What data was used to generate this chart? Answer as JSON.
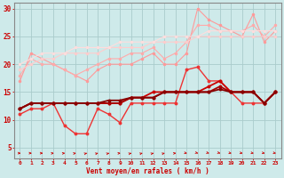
{
  "x": [
    0,
    1,
    2,
    3,
    4,
    5,
    6,
    7,
    8,
    9,
    10,
    11,
    12,
    13,
    14,
    15,
    16,
    17,
    18,
    19,
    20,
    21,
    22,
    23
  ],
  "series": [
    {
      "color": "#ff9999",
      "lw": 0.8,
      "marker": "o",
      "ms": 1.5,
      "values": [
        17,
        22,
        21,
        20,
        19,
        18,
        17,
        19,
        20,
        20,
        20,
        21,
        22,
        20,
        20,
        22,
        30,
        28,
        27,
        26,
        25,
        29,
        24,
        26
      ]
    },
    {
      "color": "#ffaaaa",
      "lw": 0.8,
      "marker": "o",
      "ms": 1.5,
      "values": [
        18,
        21,
        20,
        20,
        19,
        18,
        19,
        20,
        21,
        21,
        22,
        22,
        23,
        21,
        22,
        24,
        27,
        27,
        26,
        26,
        26,
        27,
        25,
        27
      ]
    },
    {
      "color": "#ffcccc",
      "lw": 0.8,
      "marker": "o",
      "ms": 1.5,
      "values": [
        19,
        20,
        21,
        21,
        22,
        22,
        22,
        22,
        23,
        23,
        23,
        23,
        24,
        24,
        24,
        24,
        25,
        25,
        25,
        25,
        25,
        25,
        25,
        25
      ]
    },
    {
      "color": "#ffdddd",
      "lw": 0.8,
      "marker": "o",
      "ms": 1.5,
      "values": [
        20,
        21,
        22,
        22,
        22,
        23,
        23,
        23,
        23,
        24,
        24,
        24,
        24,
        25,
        25,
        25,
        25,
        26,
        26,
        26,
        26,
        26,
        26,
        26
      ]
    },
    {
      "color": "#ee3333",
      "lw": 1.0,
      "marker": "o",
      "ms": 1.8,
      "values": [
        11,
        12,
        12,
        13,
        9,
        7.5,
        7.5,
        12,
        11,
        9.5,
        13,
        13,
        13,
        13,
        13,
        19,
        19.5,
        17,
        17,
        15,
        13,
        13,
        13,
        15
      ]
    },
    {
      "color": "#cc0000",
      "lw": 1.3,
      "marker": "o",
      "ms": 1.8,
      "values": [
        12,
        13,
        13,
        13,
        13,
        13,
        13,
        13,
        13,
        13,
        14,
        14,
        15,
        15,
        15,
        15,
        15,
        16,
        17,
        15,
        15,
        15,
        13,
        15
      ]
    },
    {
      "color": "#aa0000",
      "lw": 1.3,
      "marker": "o",
      "ms": 1.8,
      "values": [
        12,
        13,
        13,
        13,
        13,
        13,
        13,
        13,
        13,
        13,
        14,
        14,
        14,
        15,
        15,
        15,
        15,
        15,
        16,
        15,
        15,
        15,
        13,
        15
      ]
    },
    {
      "color": "#880000",
      "lw": 1.3,
      "marker": "o",
      "ms": 1.8,
      "values": [
        12,
        13,
        13,
        13,
        13,
        13,
        13,
        13,
        13.5,
        13.5,
        14,
        14,
        14,
        15,
        15,
        15,
        15,
        15,
        15.5,
        15,
        15,
        15,
        13,
        15
      ]
    }
  ],
  "xlabel": "Vent moyen/en rafales ( km/h )",
  "xlim": [
    -0.5,
    23.5
  ],
  "ylim": [
    3,
    31
  ],
  "yticks": [
    5,
    10,
    15,
    20,
    25,
    30
  ],
  "xticks": [
    0,
    1,
    2,
    3,
    4,
    5,
    6,
    7,
    8,
    9,
    10,
    11,
    12,
    13,
    14,
    15,
    16,
    17,
    18,
    19,
    20,
    21,
    22,
    23
  ],
  "bg_color": "#ceeaea",
  "grid_color": "#aacccc",
  "tick_color": "#cc0000",
  "label_color": "#cc0000",
  "border_color": "#888888",
  "arrow_color": "#cc0000"
}
